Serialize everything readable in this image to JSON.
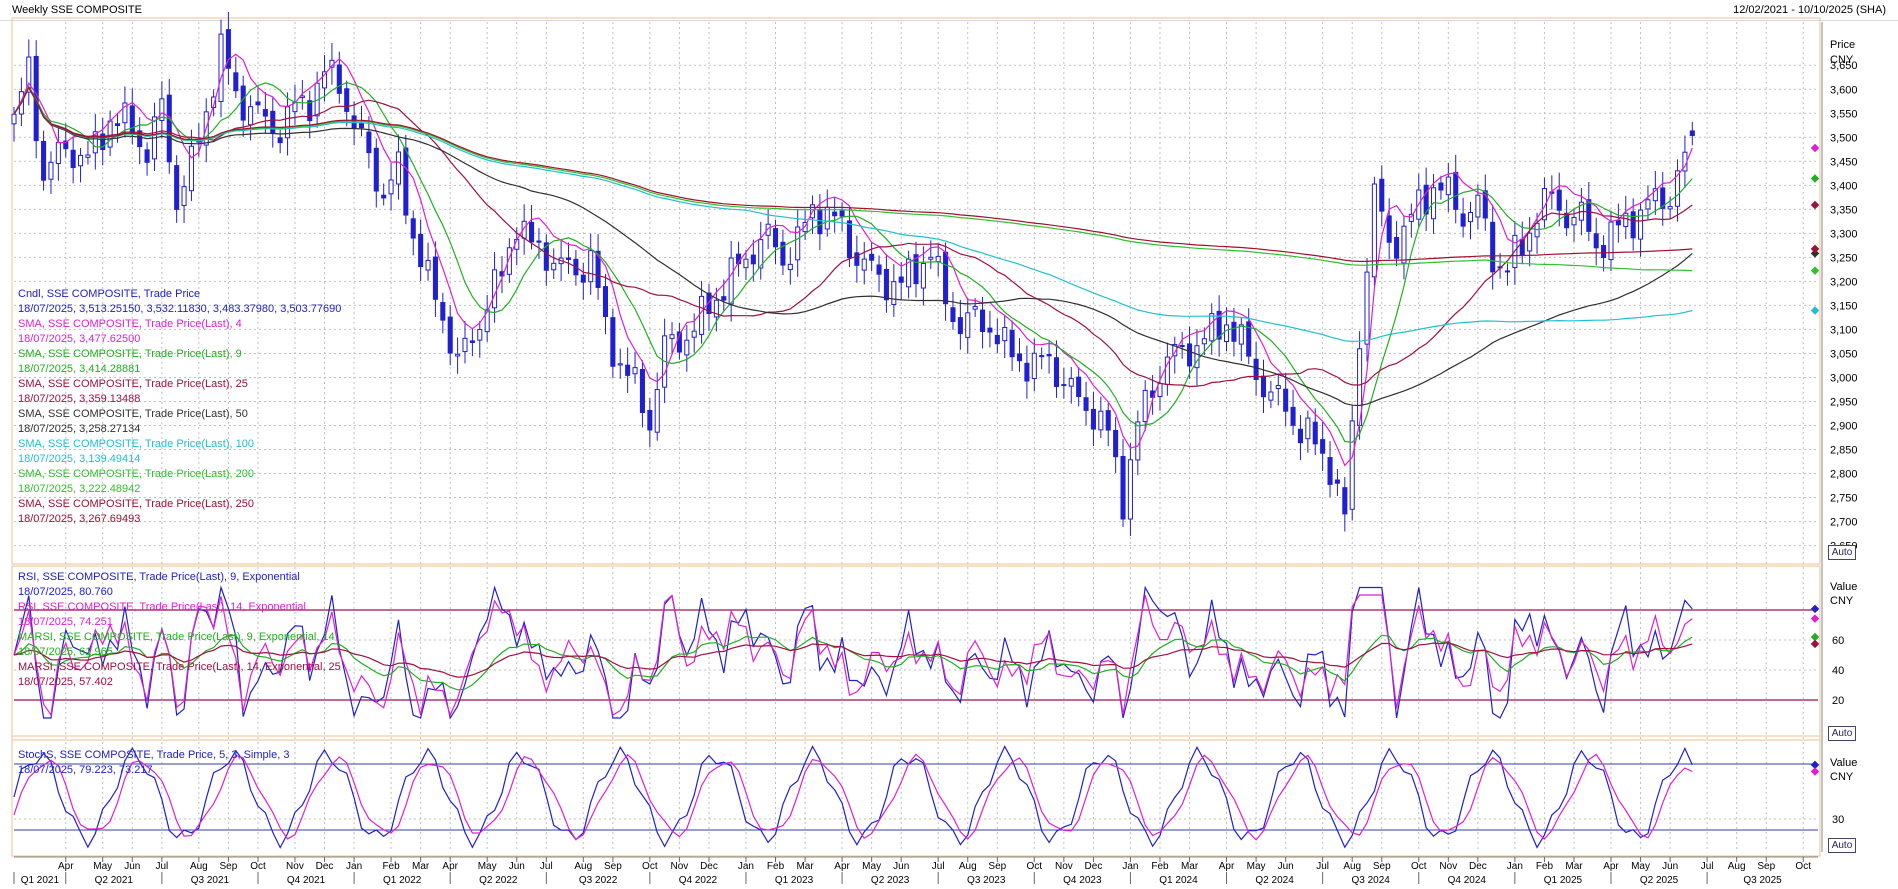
{
  "window": {
    "title": "Weekly SSE COMPOSITE",
    "range": "12/02/2021 - 10/10/2025 (SHA)"
  },
  "colors": {
    "candle": "#2020d0",
    "sma4": "#e020d0",
    "sma9": "#20b020",
    "sma25": "#a01040",
    "sma50": "#303030",
    "sma100": "#20c0d0",
    "sma200": "#30c030",
    "sma250": "#a01030",
    "rsi9": "#2020d0",
    "rsi14": "#e020d0",
    "marsi9": "#20b020",
    "marsi14": "#a01040",
    "stochK": "#2020d0",
    "stochD": "#e020d0",
    "band": "#a01050",
    "grid": "#c0c0c0"
  },
  "price_panel": {
    "axis_title": "Price",
    "axis_unit": "CNY",
    "auto_label": "Auto",
    "legend": [
      {
        "name": "Cndl, SSE COMPOSITE, Trade Price",
        "value": "18/07/2025, 3,513.25150, 3,532.11830, 3,483.37980, 3,503.77690",
        "color": "#2020d0"
      },
      {
        "name": "SMA, SSE COMPOSITE, Trade Price(Last),  4",
        "value": "18/07/2025, 3,477.62500",
        "color": "#e020d0"
      },
      {
        "name": "SMA, SSE COMPOSITE, Trade Price(Last),  9",
        "value": "18/07/2025, 3,414.28881",
        "color": "#20b020"
      },
      {
        "name": "SMA, SSE COMPOSITE, Trade Price(Last),  25",
        "value": "18/07/2025, 3,359.13488",
        "color": "#a01040"
      },
      {
        "name": "SMA, SSE COMPOSITE, Trade Price(Last),  50",
        "value": "18/07/2025, 3,258.27134",
        "color": "#303030"
      },
      {
        "name": "SMA, SSE COMPOSITE, Trade Price(Last),  100",
        "value": "18/07/2025, 3,139.49414",
        "color": "#20c0d0"
      },
      {
        "name": "SMA, SSE COMPOSITE, Trade Price(Last),  200",
        "value": "18/07/2025, 3,222.48942",
        "color": "#30c030"
      },
      {
        "name": "SMA, SSE COMPOSITE, Trade Price(Last),  250",
        "value": "18/07/2025, 3,267.69493",
        "color": "#a01030"
      }
    ]
  },
  "rsi_panel": {
    "axis_title": "Value",
    "axis_unit": "CNY",
    "auto_label": "Auto",
    "legend": [
      {
        "name": "RSI, SSE COMPOSITE, Trade Price(Last),  9, Exponential",
        "value": "18/07/2025, 80.760",
        "color": "#2020d0"
      },
      {
        "name": "RSI, SSE COMPOSITE, Trade Price(Last),  14, Exponential",
        "value": "18/07/2025, 74.251",
        "color": "#e020d0"
      },
      {
        "name": "MARSI, SSE COMPOSITE, Trade Price(Last),  9, Exponential,  14",
        "value": "18/07/2025, 61.965",
        "color": "#20b020"
      },
      {
        "name": "MARSI, SSE COMPOSITE, Trade Price(Last),  14, Exponential,  25",
        "value": "18/07/2025, 57.402",
        "color": "#a01040"
      }
    ]
  },
  "stoch_panel": {
    "axis_title": "Value",
    "axis_unit": "CNY",
    "auto_label": "Auto",
    "legend": [
      {
        "name": "StochS, SSE COMPOSITE, Trade Price,  5, 3, Simple, 3",
        "value": "18/07/2025, 79.223, 73.217",
        "color": "#2020d0"
      }
    ]
  },
  "chart_data": [
    {
      "type": "candlestick",
      "title": "Weekly SSE COMPOSITE",
      "ylabel": "Price CNY",
      "ylim": [
        2620,
        3740
      ],
      "yticks": [
        "2,650",
        "2,700",
        "2,750",
        "2,800",
        "2,850",
        "2,900",
        "2,950",
        "3,000",
        "3,050",
        "3,100",
        "3,150",
        "3,200",
        "3,250",
        "3,300",
        "3,350",
        "3,400",
        "3,450",
        "3,500",
        "3,550",
        "3,600",
        "3,650"
      ],
      "ytick_values": [
        2650,
        2700,
        2750,
        2800,
        2850,
        2900,
        2950,
        3000,
        3050,
        3100,
        3150,
        3200,
        3250,
        3300,
        3350,
        3400,
        3450,
        3500,
        3550,
        3600,
        3650
      ],
      "xlim_weeks": [
        0,
        244
      ],
      "months": [
        {
          "label": "Apr",
          "w": 7
        },
        {
          "label": "May",
          "w": 12
        },
        {
          "label": "Jun",
          "w": 16
        },
        {
          "label": "Jul",
          "w": 20
        },
        {
          "label": "Aug",
          "w": 25
        },
        {
          "label": "Sep",
          "w": 29
        },
        {
          "label": "Oct",
          "w": 33
        },
        {
          "label": "Nov",
          "w": 38
        },
        {
          "label": "Dec",
          "w": 42
        },
        {
          "label": "Jan",
          "w": 46
        },
        {
          "label": "Feb",
          "w": 51
        },
        {
          "label": "Mar",
          "w": 55
        },
        {
          "label": "Apr",
          "w": 59
        },
        {
          "label": "May",
          "w": 64
        },
        {
          "label": "Jun",
          "w": 68
        },
        {
          "label": "Jul",
          "w": 72
        },
        {
          "label": "Aug",
          "w": 77
        },
        {
          "label": "Sep",
          "w": 81
        },
        {
          "label": "Oct",
          "w": 86
        },
        {
          "label": "Nov",
          "w": 90
        },
        {
          "label": "Dec",
          "w": 94
        },
        {
          "label": "Jan",
          "w": 99
        },
        {
          "label": "Feb",
          "w": 103
        },
        {
          "label": "Mar",
          "w": 107
        },
        {
          "label": "Apr",
          "w": 112
        },
        {
          "label": "May",
          "w": 116
        },
        {
          "label": "Jun",
          "w": 120
        },
        {
          "label": "Jul",
          "w": 125
        },
        {
          "label": "Aug",
          "w": 129
        },
        {
          "label": "Sep",
          "w": 133
        },
        {
          "label": "Oct",
          "w": 138
        },
        {
          "label": "Nov",
          "w": 142
        },
        {
          "label": "Dec",
          "w": 146
        },
        {
          "label": "Jan",
          "w": 151
        },
        {
          "label": "Feb",
          "w": 155
        },
        {
          "label": "Mar",
          "w": 159
        },
        {
          "label": "Apr",
          "w": 164
        },
        {
          "label": "May",
          "w": 168
        },
        {
          "label": "Jun",
          "w": 172
        },
        {
          "label": "Jul",
          "w": 177
        },
        {
          "label": "Aug",
          "w": 181
        },
        {
          "label": "Sep",
          "w": 185
        },
        {
          "label": "Oct",
          "w": 190
        },
        {
          "label": "Nov",
          "w": 194
        },
        {
          "label": "Dec",
          "w": 198
        },
        {
          "label": "Jan",
          "w": 203
        },
        {
          "label": "Feb",
          "w": 207
        },
        {
          "label": "Mar",
          "w": 211
        },
        {
          "label": "Apr",
          "w": 216
        },
        {
          "label": "May",
          "w": 220
        },
        {
          "label": "Jun",
          "w": 224
        },
        {
          "label": "Jul",
          "w": 229
        },
        {
          "label": "Aug",
          "w": 233
        },
        {
          "label": "Sep",
          "w": 237
        },
        {
          "label": "Oct",
          "w": 242
        }
      ],
      "quarters": [
        {
          "label": "Q1 2021",
          "w": 0
        },
        {
          "label": "Q2 2021",
          "w": 7
        },
        {
          "label": "Q3 2021",
          "w": 20
        },
        {
          "label": "Q4 2021",
          "w": 33
        },
        {
          "label": "Q1 2022",
          "w": 46
        },
        {
          "label": "Q2 2022",
          "w": 59
        },
        {
          "label": "Q3 2022",
          "w": 72
        },
        {
          "label": "Q4 2022",
          "w": 86
        },
        {
          "label": "Q1 2023",
          "w": 99
        },
        {
          "label": "Q2 2023",
          "w": 112
        },
        {
          "label": "Q3 2023",
          "w": 125
        },
        {
          "label": "Q4 2023",
          "w": 138
        },
        {
          "label": "Q1 2024",
          "w": 151
        },
        {
          "label": "Q2 2024",
          "w": 164
        },
        {
          "label": "Q3 2024",
          "w": 177
        },
        {
          "label": "Q4 2024",
          "w": 190
        },
        {
          "label": "Q1 2025",
          "w": 203
        },
        {
          "label": "Q2 2025",
          "w": 216
        },
        {
          "label": "Q3 2025",
          "w": 229
        }
      ],
      "close_anchors": [
        [
          0,
          3530
        ],
        [
          2,
          3640
        ],
        [
          4,
          3420
        ],
        [
          7,
          3480
        ],
        [
          10,
          3450
        ],
        [
          13,
          3540
        ],
        [
          16,
          3520
        ],
        [
          18,
          3470
        ],
        [
          20,
          3560
        ],
        [
          22,
          3370
        ],
        [
          24,
          3440
        ],
        [
          26,
          3560
        ],
        [
          28,
          3680
        ],
        [
          30,
          3590
        ],
        [
          32,
          3560
        ],
        [
          34,
          3530
        ],
        [
          36,
          3520
        ],
        [
          38,
          3560
        ],
        [
          40,
          3580
        ],
        [
          42,
          3630
        ],
        [
          44,
          3620
        ],
        [
          46,
          3520
        ],
        [
          48,
          3460
        ],
        [
          50,
          3380
        ],
        [
          52,
          3430
        ],
        [
          54,
          3300
        ],
        [
          56,
          3200
        ],
        [
          58,
          3130
        ],
        [
          60,
          3030
        ],
        [
          62,
          3080
        ],
        [
          64,
          3160
        ],
        [
          66,
          3210
        ],
        [
          68,
          3330
        ],
        [
          70,
          3270
        ],
        [
          72,
          3260
        ],
        [
          74,
          3230
        ],
        [
          76,
          3220
        ],
        [
          78,
          3250
        ],
        [
          80,
          3100
        ],
        [
          82,
          3030
        ],
        [
          84,
          2980
        ],
        [
          86,
          2910
        ],
        [
          88,
          3060
        ],
        [
          90,
          3080
        ],
        [
          92,
          3100
        ],
        [
          94,
          3150
        ],
        [
          96,
          3190
        ],
        [
          98,
          3230
        ],
        [
          100,
          3270
        ],
        [
          102,
          3290
        ],
        [
          104,
          3250
        ],
        [
          106,
          3280
        ],
        [
          108,
          3350
        ],
        [
          110,
          3340
        ],
        [
          112,
          3310
        ],
        [
          114,
          3250
        ],
        [
          116,
          3220
        ],
        [
          118,
          3200
        ],
        [
          120,
          3190
        ],
        [
          122,
          3230
        ],
        [
          124,
          3260
        ],
        [
          126,
          3160
        ],
        [
          128,
          3110
        ],
        [
          130,
          3120
        ],
        [
          132,
          3110
        ],
        [
          134,
          3060
        ],
        [
          136,
          3040
        ],
        [
          138,
          3020
        ],
        [
          140,
          3040
        ],
        [
          142,
          2990
        ],
        [
          144,
          2950
        ],
        [
          146,
          2930
        ],
        [
          148,
          2880
        ],
        [
          150,
          2750
        ],
        [
          152,
          2900
        ],
        [
          154,
          2980
        ],
        [
          156,
          3040
        ],
        [
          158,
          3050
        ],
        [
          160,
          3070
        ],
        [
          162,
          3090
        ],
        [
          164,
          3120
        ],
        [
          166,
          3070
        ],
        [
          168,
          3010
        ],
        [
          170,
          2960
        ],
        [
          172,
          2940
        ],
        [
          174,
          2890
        ],
        [
          176,
          2860
        ],
        [
          178,
          2820
        ],
        [
          180,
          2700
        ],
        [
          182,
          3090
        ],
        [
          184,
          3380
        ],
        [
          186,
          3280
        ],
        [
          188,
          3300
        ],
        [
          190,
          3360
        ],
        [
          192,
          3400
        ],
        [
          194,
          3380
        ],
        [
          196,
          3340
        ],
        [
          198,
          3360
        ],
        [
          200,
          3250
        ],
        [
          202,
          3230
        ],
        [
          204,
          3270
        ],
        [
          206,
          3350
        ],
        [
          208,
          3370
        ],
        [
          210,
          3340
        ],
        [
          212,
          3330
        ],
        [
          214,
          3280
        ],
        [
          216,
          3290
        ],
        [
          218,
          3330
        ],
        [
          220,
          3340
        ],
        [
          222,
          3370
        ],
        [
          224,
          3380
        ],
        [
          226,
          3450
        ],
        [
          227,
          3504
        ]
      ],
      "last_candle": {
        "date": "18/07/2025",
        "open": 3513.2515,
        "high": 3532.1183,
        "low": 3483.3798,
        "close": 3503.7769
      },
      "series": [
        {
          "name": "SMA 4",
          "last": 3477.625
        },
        {
          "name": "SMA 9",
          "last": 3414.28881
        },
        {
          "name": "SMA 25",
          "last": 3359.13488
        },
        {
          "name": "SMA 50",
          "last": 3258.27134
        },
        {
          "name": "SMA 100",
          "last": 3139.49414
        },
        {
          "name": "SMA 200",
          "last": 3222.48942
        },
        {
          "name": "SMA 250",
          "last": 3267.69493
        }
      ]
    },
    {
      "type": "line",
      "title": "RSI",
      "ylim": [
        0,
        100
      ],
      "yticks": [
        "20",
        "40",
        "60"
      ],
      "ytick_values": [
        20,
        40,
        60
      ],
      "bands": [
        20,
        80
      ],
      "series": [
        {
          "name": "RSI 9",
          "last": 80.76
        },
        {
          "name": "RSI 14",
          "last": 74.251
        },
        {
          "name": "MARSI 9",
          "last": 61.965
        },
        {
          "name": "MARSI 14",
          "last": 57.402
        }
      ]
    },
    {
      "type": "line",
      "title": "StochS",
      "ylim": [
        0,
        100
      ],
      "yticks": [
        "30"
      ],
      "ytick_values": [
        30
      ],
      "bands": [
        20,
        80
      ],
      "series": [
        {
          "name": "%K",
          "last": 79.223
        },
        {
          "name": "%D",
          "last": 73.217
        }
      ]
    }
  ]
}
